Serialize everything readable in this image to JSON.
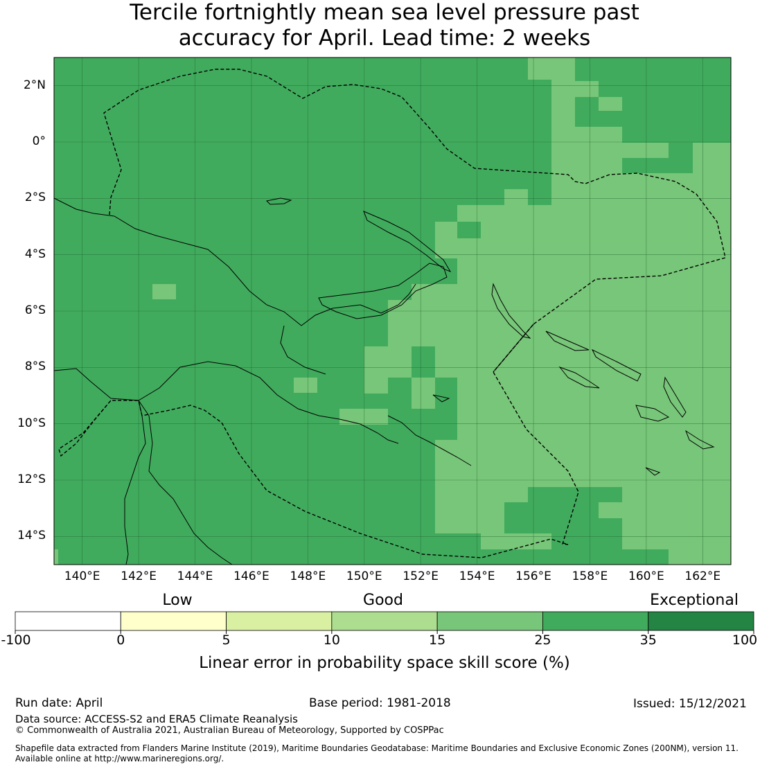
{
  "title": {
    "line1": "Tercile fortnightly mean sea level pressure past",
    "line2": "accuracy for April. Lead time: 2 weeks"
  },
  "map": {
    "extent": {
      "lon": [
        139,
        163
      ],
      "lat": [
        -15,
        3
      ]
    },
    "lat_labels": [
      "2°N",
      "0°",
      "2°S",
      "4°S",
      "6°S",
      "8°S",
      "10°S",
      "12°S",
      "14°S"
    ],
    "lat_values": [
      2,
      0,
      -2,
      -4,
      -6,
      -8,
      -10,
      -12,
      -14
    ],
    "lon_labels": [
      "140°E",
      "142°E",
      "144°E",
      "146°E",
      "148°E",
      "150°E",
      "152°E",
      "154°E",
      "156°E",
      "158°E",
      "160°E",
      "162°E"
    ],
    "lon_values": [
      140,
      142,
      144,
      146,
      148,
      150,
      152,
      154,
      156,
      158,
      160,
      162
    ],
    "base_category": "25 to 35",
    "base_color": "#41ab5d",
    "light_color": "#78c679",
    "light_cells_note_color": "15 to 25"
  },
  "legend": {
    "categories": [
      {
        "label": "Low"
      },
      {
        "label": "Good"
      },
      {
        "label": "Exceptional"
      }
    ],
    "bins": [
      {
        "from": "-100",
        "to": "0",
        "color": "#ffffff"
      },
      {
        "from": "0",
        "to": "5",
        "color": "#ffffcc"
      },
      {
        "from": "5",
        "to": "10",
        "color": "#d9f0a3"
      },
      {
        "from": "10",
        "to": "15",
        "color": "#addd8e"
      },
      {
        "from": "15",
        "to": "25",
        "color": "#78c679"
      },
      {
        "from": "25",
        "to": "35",
        "color": "#41ab5d"
      },
      {
        "from": "35",
        "to": "100",
        "color": "#238443"
      }
    ],
    "ticks": [
      "-100",
      "0",
      "5",
      "10",
      "15",
      "25",
      "35",
      "100"
    ],
    "title": "Linear error in probability space skill score (%)"
  },
  "footer": {
    "run_date": "Run date: April",
    "base_period": "Base period: 1981-2018",
    "issued": "Issued: 15/12/2021",
    "data_source": "Data source: ACCESS-S2 and ERA5 Climate Reanalysis",
    "copyright": "© Commonwealth of Australia 2021, Australian Bureau of Meteorology, Supported by COSPPac",
    "shapefile_line1": "Shapefile data extracted from Flanders Marine Institute (2019), Maritime Boundaries Geodatabase: Maritime Boundaries and Exclusive Economic Zones (200NM), version 11.",
    "shapefile_line2": "Available online at http://www.marineregions.org/."
  }
}
